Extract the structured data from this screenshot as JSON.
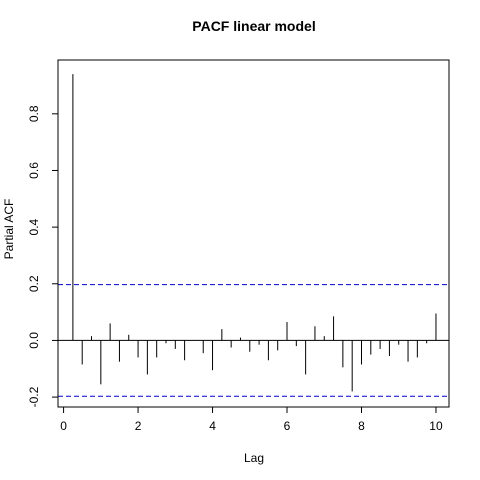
{
  "chart_data": {
    "type": "bar",
    "title": "PACF linear model",
    "xlabel": "Lag",
    "ylabel": "Partial ACF",
    "xlim": [
      -0.15,
      10.35
    ],
    "ylim": [
      -0.235,
      0.99
    ],
    "x_ticks": [
      0,
      2,
      4,
      6,
      8,
      10
    ],
    "y_ticks": [
      -0.2,
      0.0,
      0.2,
      0.4,
      0.6,
      0.8
    ],
    "y_tick_labels": [
      "-0.2",
      "0.0",
      "0.2",
      "0.4",
      "0.6",
      "0.8"
    ],
    "confidence_bound": 0.197,
    "confidence_line_color": "#0000cc",
    "grid": false,
    "lags": [
      0.25,
      0.5,
      0.75,
      1.0,
      1.25,
      1.5,
      1.75,
      2.0,
      2.25,
      2.5,
      2.75,
      3.0,
      3.25,
      3.5,
      3.75,
      4.0,
      4.25,
      4.5,
      4.75,
      5.0,
      5.25,
      5.5,
      5.75,
      6.0,
      6.25,
      6.5,
      6.75,
      7.0,
      7.25,
      7.5,
      7.75,
      8.0,
      8.25,
      8.5,
      8.75,
      9.0,
      9.25,
      9.5,
      9.75,
      10.0
    ],
    "values": [
      0.94,
      -0.085,
      0.015,
      -0.155,
      0.06,
      -0.075,
      0.02,
      -0.06,
      -0.12,
      -0.06,
      -0.01,
      -0.03,
      -0.07,
      0.0,
      -0.045,
      -0.105,
      0.04,
      -0.025,
      0.01,
      -0.04,
      -0.015,
      -0.07,
      -0.035,
      0.065,
      -0.02,
      -0.12,
      0.05,
      0.015,
      0.085,
      -0.095,
      -0.18,
      -0.085,
      -0.05,
      -0.03,
      -0.055,
      -0.015,
      -0.075,
      -0.06,
      -0.01,
      0.095
    ]
  }
}
